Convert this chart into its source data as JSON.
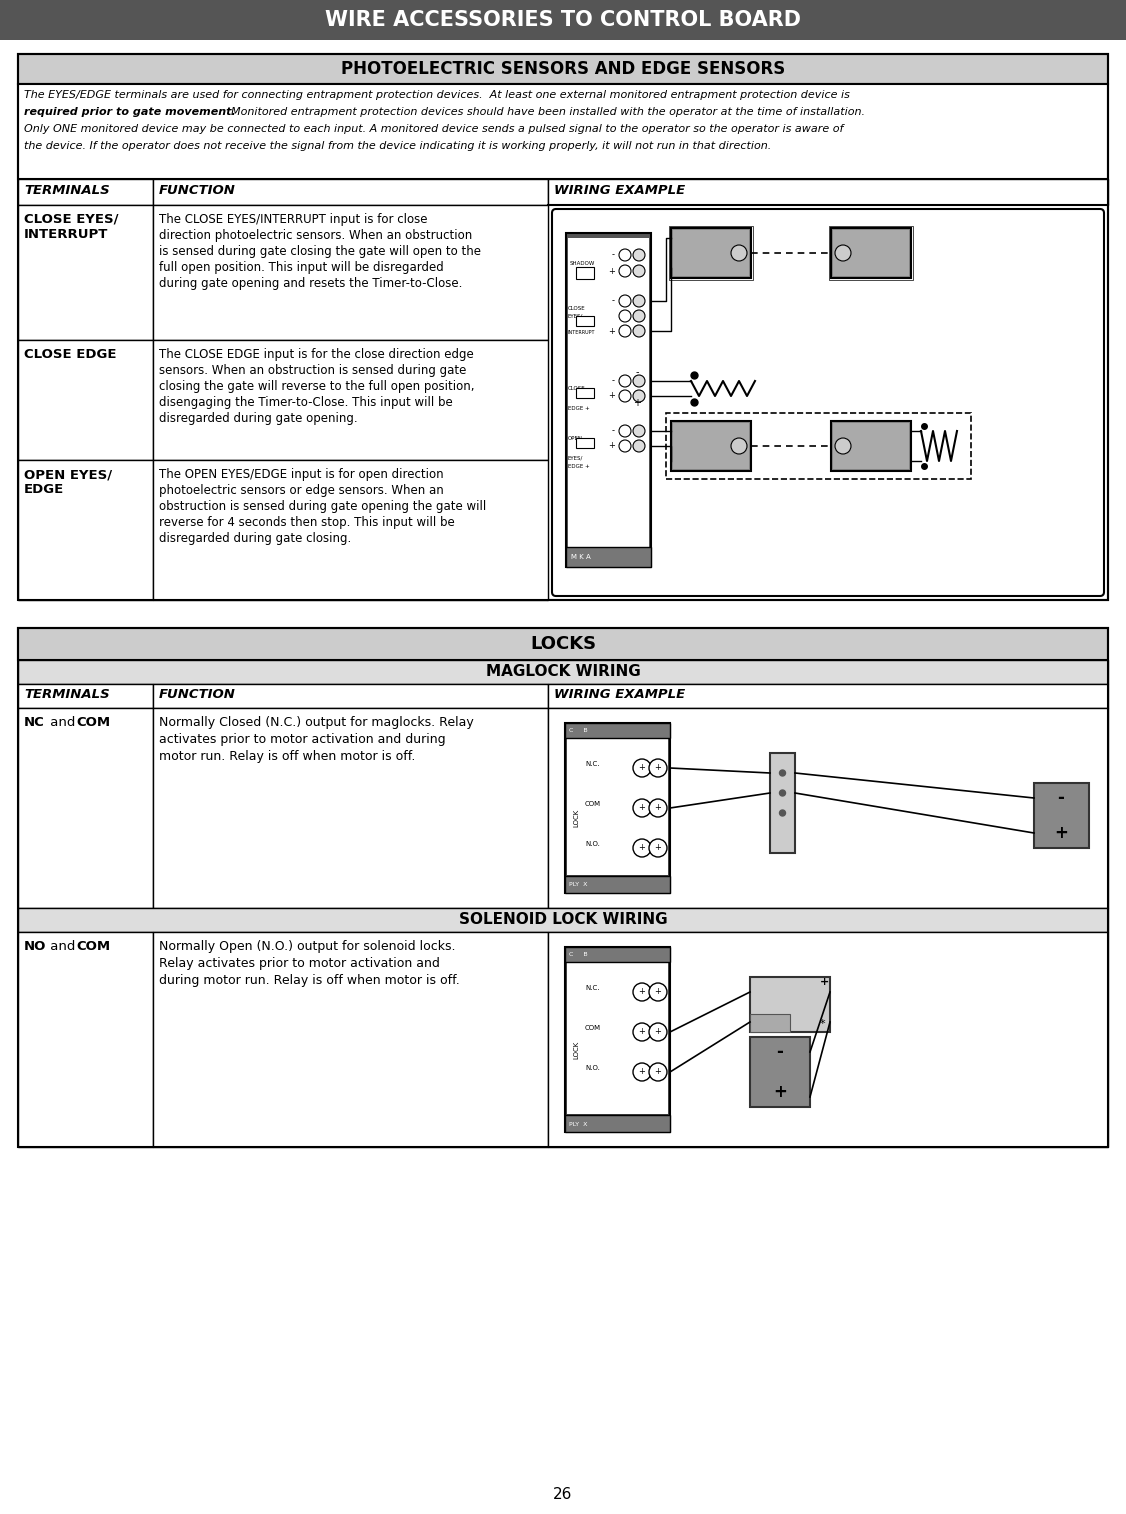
{
  "page_title": "WIRE ACCESSORIES TO CONTROL BOARD",
  "page_number": "26",
  "header_bg": "#555555",
  "header_text_color": "#ffffff",
  "section1_title": "PHOTOELECTRIC SENSORS AND EDGE SENSORS",
  "section1_title_bg": "#cccccc",
  "col_headers": [
    "TERMINALS",
    "FUNCTION",
    "WIRING EXAMPLE"
  ],
  "eyes_rows": [
    {
      "terminal": "CLOSE EYES/\nINTERRUPT",
      "function": "The CLOSE EYES/INTERRUPT input is for close\ndirection photoelectric sensors. When an obstruction\nis sensed during gate closing the gate will open to the\nfull open position. This input will be disregarded\nduring gate opening and resets the Timer-to-Close."
    },
    {
      "terminal": "CLOSE EDGE",
      "function": "The CLOSE EDGE input is for the close direction edge\nsensors. When an obstruction is sensed during gate\nclosing the gate will reverse to the full open position,\ndisengaging the Timer-to-Close. This input will be\ndisregarded during gate opening."
    },
    {
      "terminal": "OPEN EYES/\nEDGE",
      "function": "The OPEN EYES/EDGE input is for open direction\nphotoelectric sensors or edge sensors. When an\nobstruction is sensed during gate opening the gate will\nreverse for 4 seconds then stop. This input will be\ndisregarded during gate closing."
    }
  ],
  "section2_title": "LOCKS",
  "section2_title_bg": "#cccccc",
  "maglock_title": "MAGLOCK WIRING",
  "solenoid_title": "SOLENOID LOCK WIRING",
  "locks_rows": [
    {
      "terminal_normal": " and ",
      "terminal_bold1": "NC",
      "terminal_bold2": "COM",
      "function": "Normally Closed (N.C.) output for maglocks. Relay\nactivates prior to motor activation and during\nmotor run. Relay is off when motor is off."
    },
    {
      "terminal_normal": " and ",
      "terminal_bold1": "NO",
      "terminal_bold2": "COM",
      "function": "Normally Open (N.O.) output for solenoid locks.\nRelay activates prior to motor activation and\nduring motor run. Relay is off when motor is off."
    }
  ]
}
